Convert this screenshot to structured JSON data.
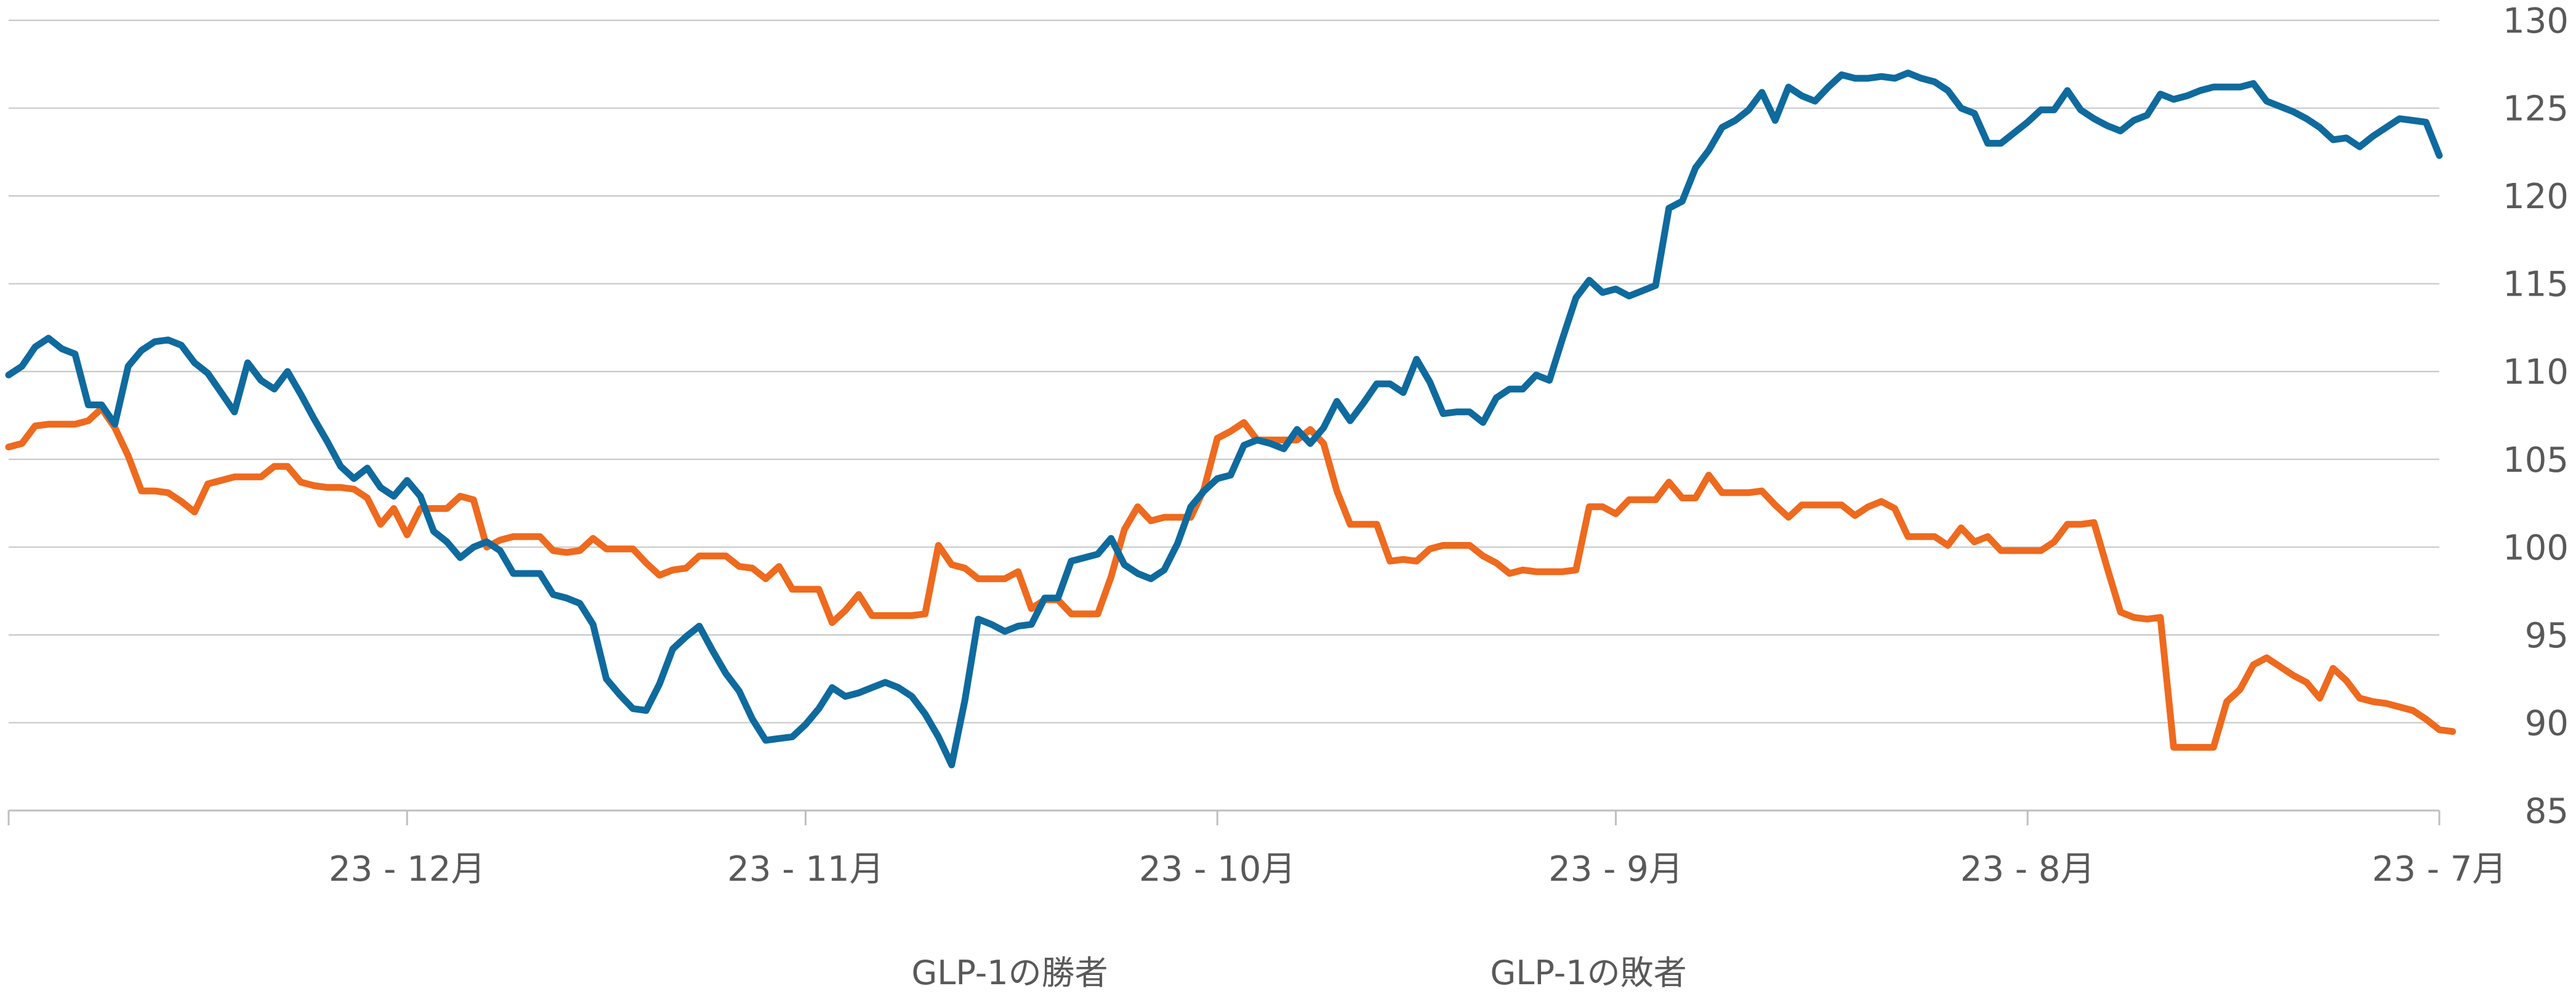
{
  "chart_data": {
    "type": "line",
    "title": "",
    "xlabel": "",
    "ylabel": "",
    "ylim": [
      85,
      130
    ],
    "y_ticks": [
      85,
      90,
      95,
      100,
      105,
      110,
      115,
      120,
      125,
      130
    ],
    "y_axis_side": "right",
    "x_axis_direction": "reversed",
    "x_tick_labels": [
      "23 - 12月",
      "23 - 11月",
      "23 - 10月",
      "23 - 9月",
      "23 - 8月",
      "23 - 7月"
    ],
    "x_index_range": [
      0,
      183
    ],
    "x_tick_index": [
      30,
      60,
      91,
      121,
      152,
      183
    ],
    "grid": "horizontal",
    "legend_position": "bottom",
    "colors": {
      "blue_series": "#0F6A9E",
      "orange_series": "#EE6A1E",
      "grid": "#C8C8C8",
      "axis": "#BFBFBF",
      "text": "#595959"
    },
    "series": [
      {
        "name": "GLP-1の勝者",
        "values": [
          109.8,
          110.3,
          111.4,
          111.9,
          111.3,
          111.0,
          108.1,
          108.1,
          107.0,
          110.3,
          111.2,
          111.7,
          111.8,
          111.5,
          110.5,
          109.9,
          108.8,
          107.7,
          110.5,
          109.5,
          109.0,
          110.0,
          108.7,
          107.3,
          106.0,
          104.6,
          103.9,
          104.5,
          103.4,
          102.9,
          103.8,
          102.9,
          100.9,
          100.3,
          99.4,
          100.0,
          100.3,
          99.8,
          98.5,
          98.5,
          98.5,
          97.3,
          97.1,
          96.8,
          95.6,
          92.5,
          91.6,
          90.8,
          90.7,
          92.2,
          94.2,
          94.9,
          95.5,
          94.1,
          92.8,
          91.8,
          90.2,
          89.0,
          89.1,
          89.2,
          89.9,
          90.8,
          92.0,
          91.5,
          91.7,
          92.0,
          92.3,
          92.0,
          91.5,
          90.5,
          89.2,
          87.6,
          91.3,
          95.9,
          95.6,
          95.2,
          95.5,
          95.6,
          97.1,
          97.1,
          99.2,
          99.4,
          99.6,
          100.5,
          99.0,
          98.5,
          98.2,
          98.7,
          100.2,
          102.3,
          103.2,
          103.9,
          104.1,
          105.8,
          106.1,
          105.9,
          105.6,
          106.7,
          105.9,
          106.8,
          108.3,
          107.2,
          108.2,
          109.3,
          109.3,
          108.8,
          110.7,
          109.4,
          107.6,
          107.7,
          107.7,
          107.1,
          108.5,
          109.0,
          109.0,
          109.8,
          109.5,
          111.9,
          114.2,
          115.2,
          114.5,
          114.7,
          114.3,
          114.6,
          114.9,
          119.3,
          119.7,
          121.6,
          122.6,
          123.9,
          124.3,
          124.9,
          125.9,
          124.3,
          126.2,
          125.7,
          125.4,
          126.2,
          126.9,
          126.7,
          126.7,
          126.8,
          126.7,
          127.0,
          126.7,
          126.5,
          126.0,
          125.0,
          124.7,
          123.0,
          123.0,
          123.6,
          124.2,
          124.9,
          124.9,
          126.0,
          124.9,
          124.4,
          124.0,
          123.7,
          124.3,
          124.6,
          125.8,
          125.5,
          125.7,
          126.0,
          126.2,
          126.2,
          126.2,
          126.4,
          125.4,
          125.1,
          124.8,
          124.4,
          123.9,
          123.2,
          123.3,
          122.8,
          123.4,
          123.9,
          124.4,
          124.3,
          124.2,
          122.3
        ]
      },
      {
        "name": "GLP-1の敗者",
        "values": [
          105.7,
          105.9,
          106.9,
          107.0,
          107.0,
          107.0,
          107.2,
          107.9,
          106.8,
          105.2,
          103.2,
          103.2,
          103.1,
          102.6,
          102.0,
          103.6,
          103.8,
          104.0,
          104.0,
          104.0,
          104.6,
          104.6,
          103.7,
          103.5,
          103.4,
          103.4,
          103.3,
          102.8,
          101.3,
          102.2,
          100.7,
          102.2,
          102.2,
          102.2,
          102.9,
          102.7,
          100.0,
          100.4,
          100.6,
          100.6,
          100.6,
          99.8,
          99.7,
          99.8,
          100.5,
          99.9,
          99.9,
          99.9,
          99.1,
          98.4,
          98.7,
          98.8,
          99.5,
          99.5,
          99.5,
          98.9,
          98.8,
          98.2,
          98.9,
          97.6,
          97.6,
          97.6,
          95.7,
          96.4,
          97.3,
          96.1,
          96.1,
          96.1,
          96.1,
          96.2,
          100.1,
          99.0,
          98.8,
          98.2,
          98.2,
          98.2,
          98.6,
          96.5,
          97.0,
          97.0,
          96.2,
          96.2,
          96.2,
          98.3,
          101.0,
          102.3,
          101.5,
          101.7,
          101.7,
          101.7,
          103.3,
          106.2,
          106.6,
          107.1,
          106.1,
          106.1,
          106.1,
          106.1,
          106.7,
          105.9,
          103.2,
          101.3,
          101.3,
          101.3,
          99.2,
          99.3,
          99.2,
          99.9,
          100.1,
          100.1,
          100.1,
          99.5,
          99.1,
          98.5,
          98.7,
          98.6,
          98.6,
          98.6,
          98.7,
          102.3,
          102.3,
          101.9,
          102.7,
          102.7,
          102.7,
          103.7,
          102.8,
          102.8,
          104.1,
          103.1,
          103.1,
          103.1,
          103.2,
          102.4,
          101.7,
          102.4,
          102.4,
          102.4,
          102.4,
          101.8,
          102.3,
          102.6,
          102.2,
          100.6,
          100.6,
          100.6,
          100.1,
          101.1,
          100.3,
          100.6,
          99.8,
          99.8,
          99.8,
          99.8,
          100.3,
          101.3,
          101.3,
          101.4,
          98.8,
          96.3,
          96.0,
          95.9,
          96.0,
          88.6,
          88.6,
          88.6,
          88.6,
          91.2,
          91.9,
          93.3,
          93.7,
          93.2,
          92.7,
          92.3,
          91.4,
          93.1,
          92.4,
          91.4,
          91.2,
          91.1,
          90.9,
          90.7,
          90.2,
          89.6,
          89.5
        ]
      }
    ]
  }
}
